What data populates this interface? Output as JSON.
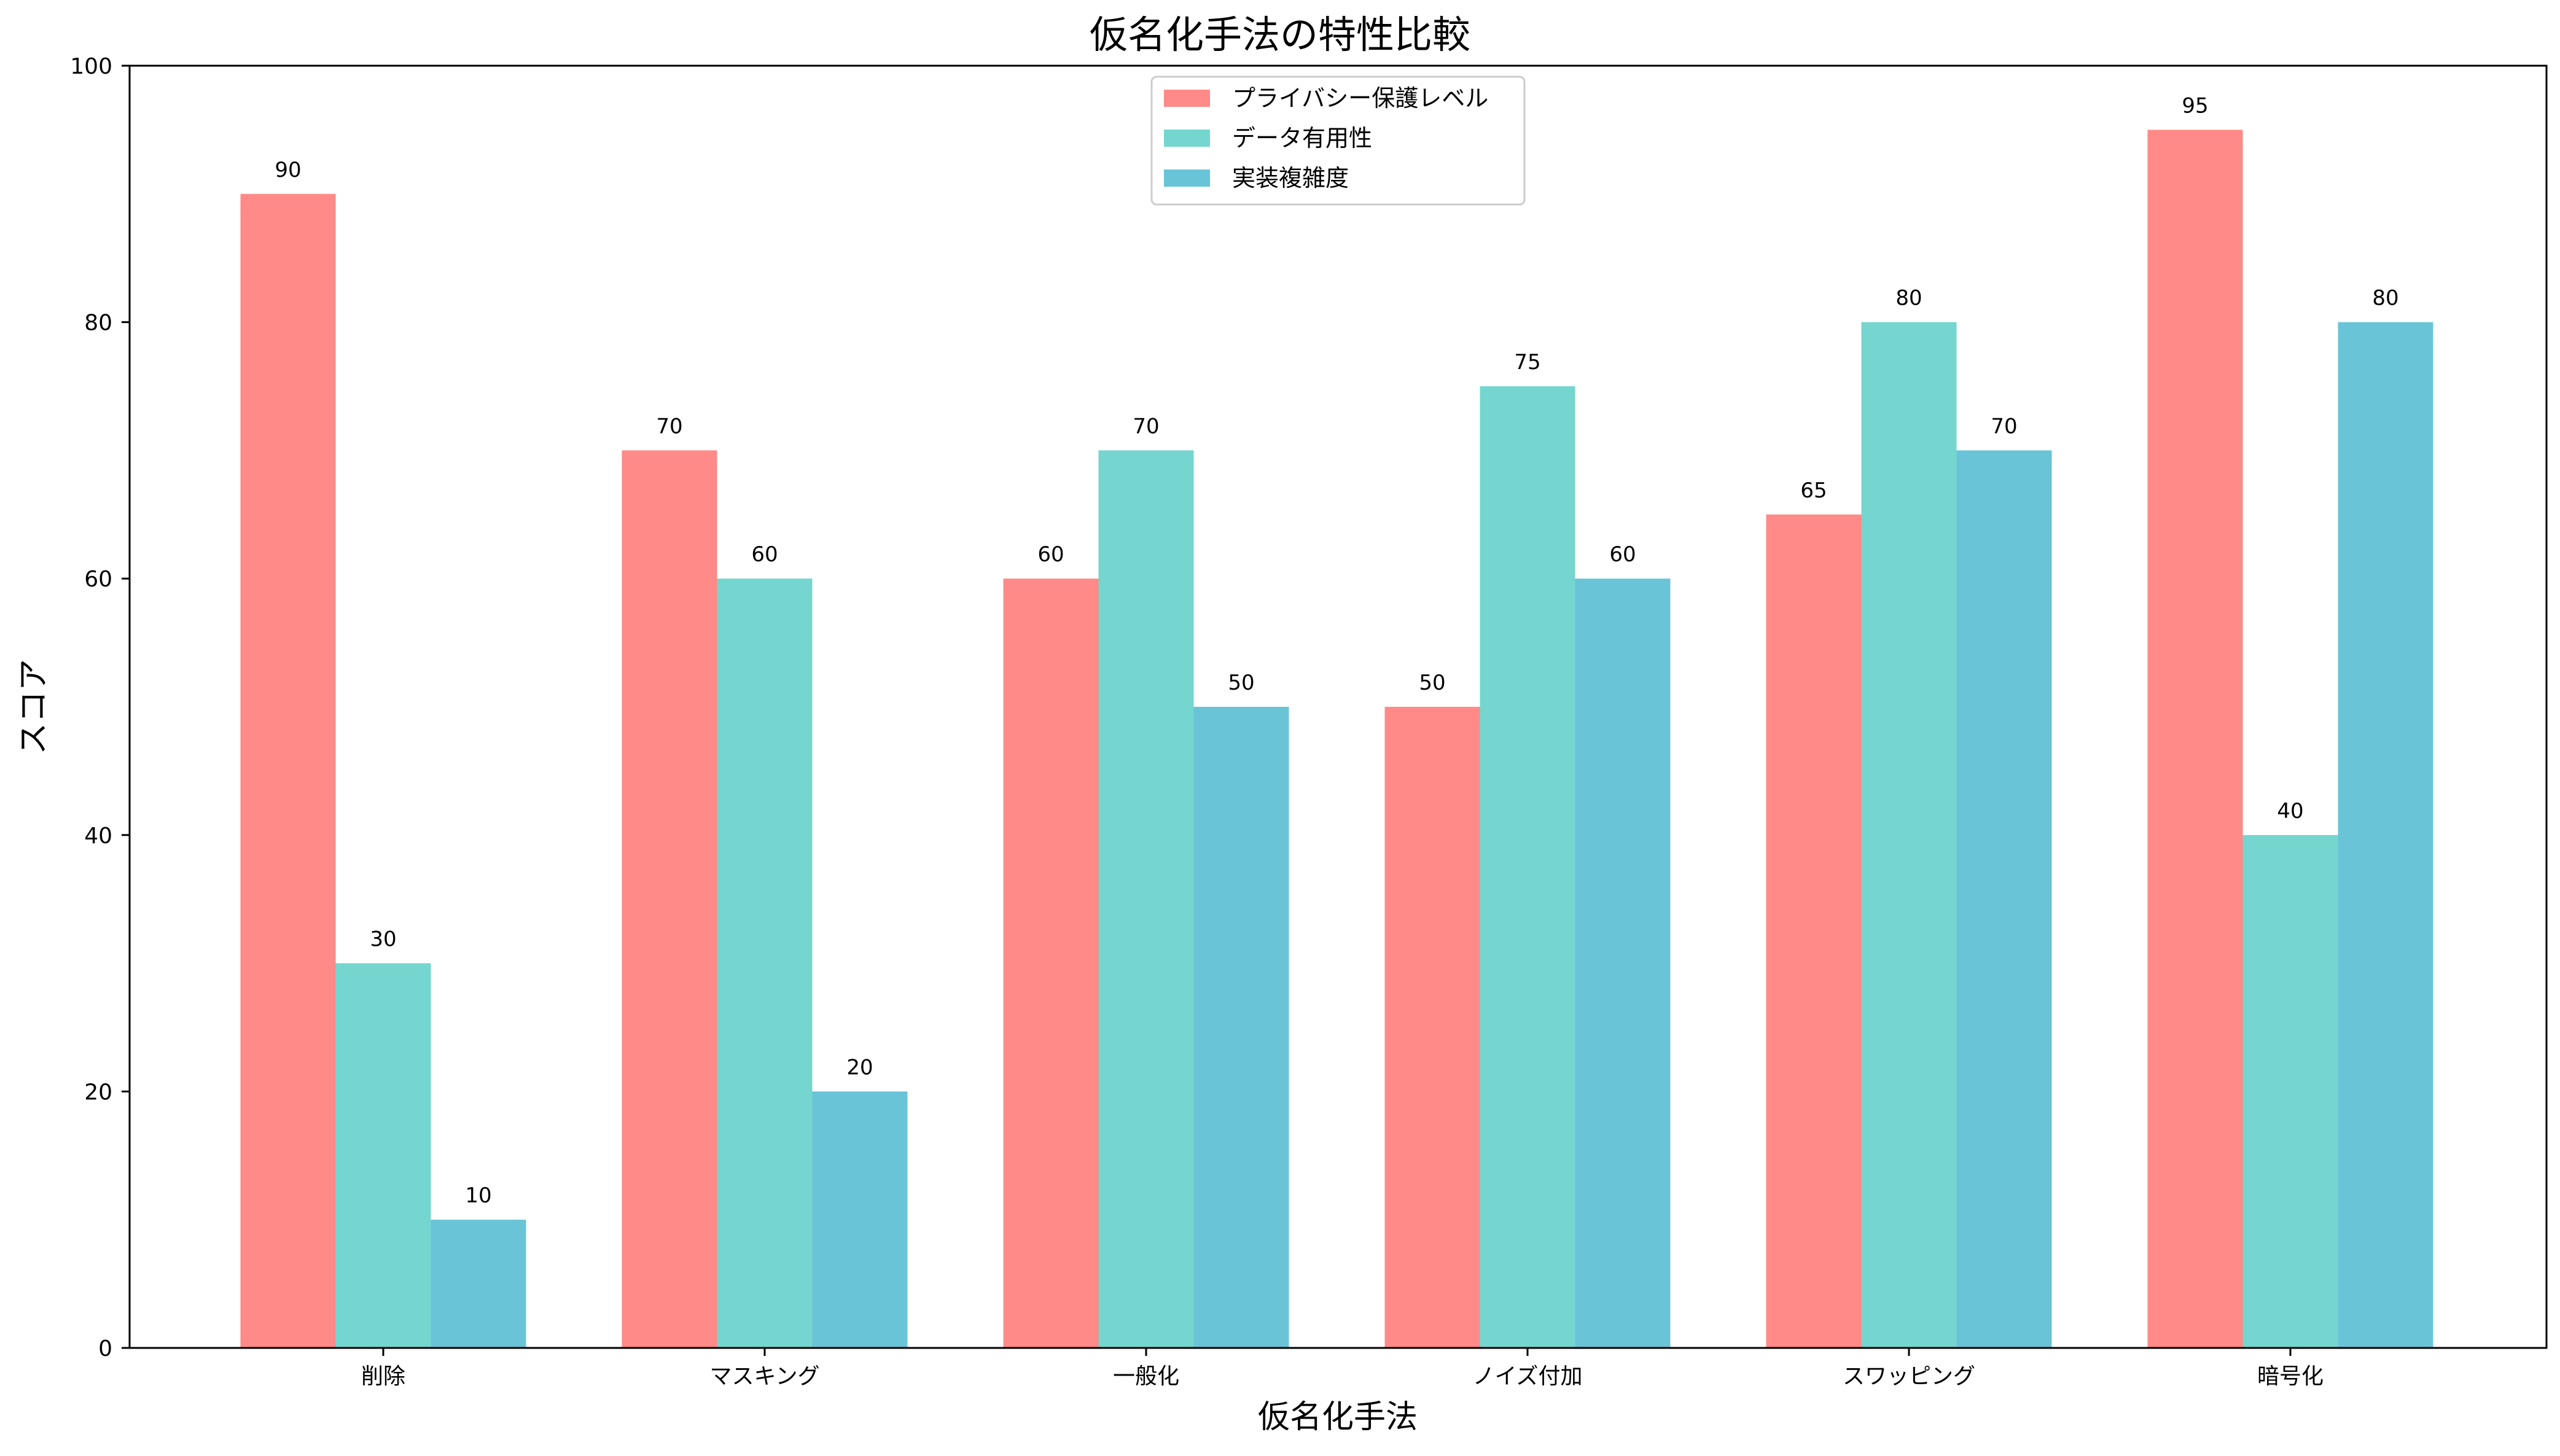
{
  "chart_data": {
    "type": "bar",
    "title": "仮名化手法の特性比較",
    "xlabel": "仮名化手法",
    "ylabel": "スコア",
    "categories": [
      "削除",
      "マスキング",
      "一般化",
      "ノイズ付加",
      "スワッピング",
      "暗号化"
    ],
    "series": [
      {
        "name": "プライバシー保護レベル",
        "color": "#ff8a87",
        "values": [
          90,
          70,
          60,
          50,
          65,
          95
        ]
      },
      {
        "name": "データ有用性",
        "color": "#74d6cf",
        "values": [
          30,
          60,
          70,
          75,
          80,
          40
        ]
      },
      {
        "name": "実装複雑度",
        "color": "#6ac4d8",
        "values": [
          10,
          20,
          50,
          60,
          70,
          80
        ]
      }
    ],
    "ylim": [
      0,
      100
    ],
    "yticks": [
      0,
      20,
      40,
      60,
      80,
      100
    ],
    "grid": false,
    "legend_position": "top-center"
  }
}
